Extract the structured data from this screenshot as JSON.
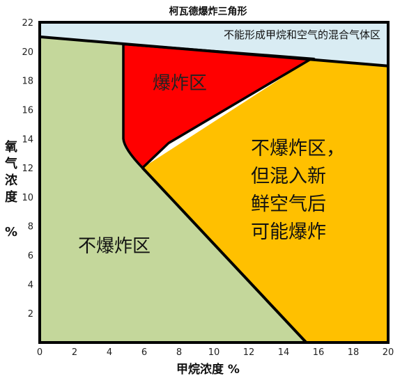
{
  "title": "柯瓦德爆炸三角形",
  "x_axis_label": "甲烷浓度 %",
  "y_axis_label_chars": [
    "氧",
    "气",
    "浓",
    "度"
  ],
  "y_axis_unit": "%",
  "x_ticks": [
    "0",
    "2",
    "4",
    "6",
    "8",
    "10",
    "12",
    "14",
    "16",
    "18",
    "20"
  ],
  "y_ticks": [
    "2",
    "4",
    "6",
    "8",
    "10",
    "12",
    "14",
    "16",
    "18",
    "20",
    "22"
  ],
  "colors": {
    "cannot_form": "#d9ecf3",
    "non_explosive": "#c4d79b",
    "explosive": "#ff0000",
    "potential": "#ffc000",
    "border": "#000000"
  },
  "regions": {
    "cannot_form": "不能形成甲烷和空气的混合气体区",
    "explosive": "爆炸区",
    "non_explosive": "不爆炸区",
    "potential_lines": [
      "不爆炸区，",
      "但混入新",
      "鲜空气后",
      "可能爆炸"
    ]
  },
  "chart_data": {
    "type": "diagram",
    "xlim": [
      0,
      20
    ],
    "ylim": [
      0,
      22
    ],
    "boundaries": {
      "air_line": [
        [
          0,
          21
        ],
        [
          20,
          19
        ]
      ],
      "explosive_polygon": [
        [
          4.8,
          20.5
        ],
        [
          15.6,
          19.5
        ],
        [
          7.4,
          13.7
        ],
        [
          5.9,
          12
        ]
      ],
      "nose_to_axis_line": [
        [
          5.9,
          12
        ],
        [
          15.3,
          0
        ]
      ],
      "lower_limit_curve": [
        [
          4.8,
          20.5
        ],
        [
          4.8,
          14
        ],
        [
          5.9,
          12
        ]
      ]
    }
  }
}
